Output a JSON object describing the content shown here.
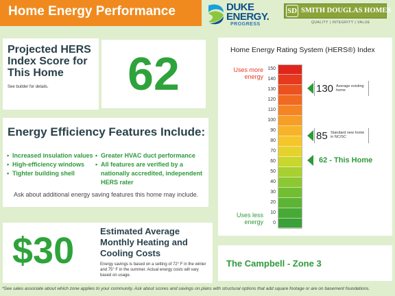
{
  "header": {
    "title": "Home Energy Performance"
  },
  "logos": {
    "duke": {
      "line1": "DUKE",
      "line2": "ENERGY.",
      "sub": "PROGRESS"
    },
    "smith": {
      "emblem": "SD",
      "name": "SMITH DOUGLAS HOMES",
      "tagline": "QUALITY | INTEGRITY | VALUE"
    }
  },
  "hers_panel": {
    "title": "Projected HERS Index Score for This Home",
    "note": "See builder for details.",
    "score": "62"
  },
  "features_panel": {
    "heading": "Energy Efficiency Features Include:",
    "left_items": [
      "Increased insulation values",
      "High-efficiency windows",
      "Tighter building shell"
    ],
    "right_items": [
      [
        "Greater HVAC duct performance"
      ],
      [
        "All features are verified by a",
        "nationally accredited, independent",
        "HERS rater"
      ]
    ],
    "note": "Ask about additional energy saving features this home may include."
  },
  "cost_panel": {
    "amount": "$30",
    "title": "Estimated Average Monthly Heating and Cooling Costs",
    "description": "Energy savings is based on a setting of 72° F in the winter and 75° F in the summer. Actual energy costs will vary based on usage."
  },
  "scale_panel": {
    "title": "Home Energy Rating System (HERS®) Index",
    "uses_more": "Uses more energy",
    "uses_less": "Uses less energy",
    "ticks": [
      "150",
      "140",
      "130",
      "120",
      "110",
      "100",
      "90",
      "80",
      "70",
      "60",
      "50",
      "40",
      "30",
      "20",
      "10",
      "0"
    ],
    "colors": [
      "#e0261c",
      "#e63a1e",
      "#ec5220",
      "#f06a22",
      "#f48424",
      "#f79e26",
      "#f8b428",
      "#f5c52a",
      "#e6d22c",
      "#c8d62e",
      "#a8d030",
      "#8cc832",
      "#72be32",
      "#5cb434",
      "#48aa36",
      "#3aa038"
    ],
    "callouts": [
      {
        "value": "130",
        "label": "Average existing home"
      },
      {
        "value": "85",
        "label": "Standard new home in NC/SC"
      }
    ],
    "this_home": "62 - This Home"
  },
  "zone_panel": {
    "label": "The Campbell - Zone 3"
  },
  "footnote": "*See sales associate about which zone applies to your community.  Ask about scores and savings on plans with structural options that add square footage or are on basement foundations."
}
